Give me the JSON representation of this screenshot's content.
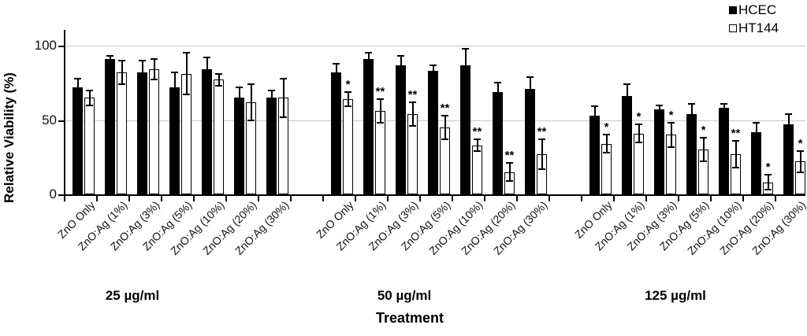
{
  "legend": {
    "items": [
      {
        "label": "HCEC",
        "swatch": "filled-black-square"
      },
      {
        "label": "HT144",
        "swatch": "open-white-square"
      }
    ]
  },
  "axes": {
    "y_title": "Relative Viability (%)",
    "x_title": "Treatment"
  },
  "chart_data": {
    "type": "bar",
    "title": "",
    "xlabel": "Treatment",
    "ylabel": "Relative Viability (%)",
    "ylim": [
      0,
      110
    ],
    "yticks": [
      0,
      50,
      100
    ],
    "gridlines": [
      50,
      100
    ],
    "grid": "horizontal",
    "legend_position": "top-right",
    "bar_colors": {
      "HCEC": "#000000",
      "HT144": "#ffffff"
    },
    "categories": [
      "ZnO Only",
      "ZnO:Ag (1%)",
      "ZnO:Ag (3%)",
      "ZnO:Ag (5%)",
      "ZnO:Ag (10%)",
      "ZnO:Ag (20%)",
      "ZnO:Ag (30%)"
    ],
    "significance_note": "asterisks shown above HT144 bars",
    "groups": [
      {
        "label": "25 µg/ml",
        "series": [
          {
            "name": "HCEC",
            "values": [
              72,
              91,
              82,
              72,
              84,
              65,
              65
            ],
            "errors": [
              6,
              2,
              8,
              10,
              8,
              7,
              5
            ]
          },
          {
            "name": "HT144",
            "values": [
              65,
              82,
              84,
              81,
              77,
              62,
              65
            ],
            "errors": [
              5,
              8,
              7,
              14,
              4,
              12,
              13
            ],
            "significance": [
              "",
              "",
              "",
              "",
              "",
              "",
              ""
            ]
          }
        ]
      },
      {
        "label": "50 µg/ml",
        "series": [
          {
            "name": "HCEC",
            "values": [
              82,
              91,
              87,
              83,
              87,
              69,
              71
            ],
            "errors": [
              6,
              4,
              6,
              4,
              11,
              6,
              8
            ]
          },
          {
            "name": "HT144",
            "values": [
              64,
              56,
              54,
              45,
              33,
              15,
              27
            ],
            "errors": [
              5,
              8,
              8,
              8,
              4,
              6,
              10
            ],
            "significance": [
              "*",
              "**",
              "**",
              "**",
              "**",
              "**",
              "**"
            ]
          }
        ]
      },
      {
        "label": "125 µg/ml",
        "series": [
          {
            "name": "HCEC",
            "values": [
              53,
              66,
              57,
              54,
              58,
              42,
              47
            ],
            "errors": [
              6,
              8,
              3,
              7,
              3,
              6,
              7
            ]
          },
          {
            "name": "HT144",
            "values": [
              34,
              41,
              40,
              30,
              27,
              8,
              22
            ],
            "errors": [
              6,
              6,
              8,
              8,
              9,
              5,
              7
            ],
            "significance": [
              "*",
              "*",
              "*",
              "*",
              "**",
              "*",
              "*"
            ]
          }
        ]
      }
    ]
  }
}
